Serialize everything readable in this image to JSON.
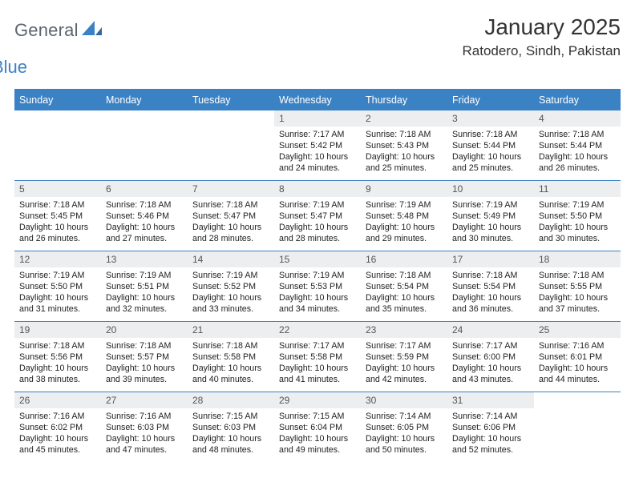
{
  "accent_color": "#3b82c4",
  "daynum_bg": "#eceef0",
  "logo": {
    "text1": "General",
    "text2": "Blue"
  },
  "title": "January 2025",
  "location": "Ratodero, Sindh, Pakistan",
  "weekdays": [
    "Sunday",
    "Monday",
    "Tuesday",
    "Wednesday",
    "Thursday",
    "Friday",
    "Saturday"
  ],
  "first_weekday_index": 3,
  "num_days": 31,
  "days": {
    "1": {
      "sunrise": "7:17 AM",
      "sunset": "5:42 PM",
      "daylight": "10 hours and 24 minutes."
    },
    "2": {
      "sunrise": "7:18 AM",
      "sunset": "5:43 PM",
      "daylight": "10 hours and 25 minutes."
    },
    "3": {
      "sunrise": "7:18 AM",
      "sunset": "5:44 PM",
      "daylight": "10 hours and 25 minutes."
    },
    "4": {
      "sunrise": "7:18 AM",
      "sunset": "5:44 PM",
      "daylight": "10 hours and 26 minutes."
    },
    "5": {
      "sunrise": "7:18 AM",
      "sunset": "5:45 PM",
      "daylight": "10 hours and 26 minutes."
    },
    "6": {
      "sunrise": "7:18 AM",
      "sunset": "5:46 PM",
      "daylight": "10 hours and 27 minutes."
    },
    "7": {
      "sunrise": "7:18 AM",
      "sunset": "5:47 PM",
      "daylight": "10 hours and 28 minutes."
    },
    "8": {
      "sunrise": "7:19 AM",
      "sunset": "5:47 PM",
      "daylight": "10 hours and 28 minutes."
    },
    "9": {
      "sunrise": "7:19 AM",
      "sunset": "5:48 PM",
      "daylight": "10 hours and 29 minutes."
    },
    "10": {
      "sunrise": "7:19 AM",
      "sunset": "5:49 PM",
      "daylight": "10 hours and 30 minutes."
    },
    "11": {
      "sunrise": "7:19 AM",
      "sunset": "5:50 PM",
      "daylight": "10 hours and 30 minutes."
    },
    "12": {
      "sunrise": "7:19 AM",
      "sunset": "5:50 PM",
      "daylight": "10 hours and 31 minutes."
    },
    "13": {
      "sunrise": "7:19 AM",
      "sunset": "5:51 PM",
      "daylight": "10 hours and 32 minutes."
    },
    "14": {
      "sunrise": "7:19 AM",
      "sunset": "5:52 PM",
      "daylight": "10 hours and 33 minutes."
    },
    "15": {
      "sunrise": "7:19 AM",
      "sunset": "5:53 PM",
      "daylight": "10 hours and 34 minutes."
    },
    "16": {
      "sunrise": "7:18 AM",
      "sunset": "5:54 PM",
      "daylight": "10 hours and 35 minutes."
    },
    "17": {
      "sunrise": "7:18 AM",
      "sunset": "5:54 PM",
      "daylight": "10 hours and 36 minutes."
    },
    "18": {
      "sunrise": "7:18 AM",
      "sunset": "5:55 PM",
      "daylight": "10 hours and 37 minutes."
    },
    "19": {
      "sunrise": "7:18 AM",
      "sunset": "5:56 PM",
      "daylight": "10 hours and 38 minutes."
    },
    "20": {
      "sunrise": "7:18 AM",
      "sunset": "5:57 PM",
      "daylight": "10 hours and 39 minutes."
    },
    "21": {
      "sunrise": "7:18 AM",
      "sunset": "5:58 PM",
      "daylight": "10 hours and 40 minutes."
    },
    "22": {
      "sunrise": "7:17 AM",
      "sunset": "5:58 PM",
      "daylight": "10 hours and 41 minutes."
    },
    "23": {
      "sunrise": "7:17 AM",
      "sunset": "5:59 PM",
      "daylight": "10 hours and 42 minutes."
    },
    "24": {
      "sunrise": "7:17 AM",
      "sunset": "6:00 PM",
      "daylight": "10 hours and 43 minutes."
    },
    "25": {
      "sunrise": "7:16 AM",
      "sunset": "6:01 PM",
      "daylight": "10 hours and 44 minutes."
    },
    "26": {
      "sunrise": "7:16 AM",
      "sunset": "6:02 PM",
      "daylight": "10 hours and 45 minutes."
    },
    "27": {
      "sunrise": "7:16 AM",
      "sunset": "6:03 PM",
      "daylight": "10 hours and 47 minutes."
    },
    "28": {
      "sunrise": "7:15 AM",
      "sunset": "6:03 PM",
      "daylight": "10 hours and 48 minutes."
    },
    "29": {
      "sunrise": "7:15 AM",
      "sunset": "6:04 PM",
      "daylight": "10 hours and 49 minutes."
    },
    "30": {
      "sunrise": "7:14 AM",
      "sunset": "6:05 PM",
      "daylight": "10 hours and 50 minutes."
    },
    "31": {
      "sunrise": "7:14 AM",
      "sunset": "6:06 PM",
      "daylight": "10 hours and 52 minutes."
    }
  },
  "labels": {
    "sunrise": "Sunrise:",
    "sunset": "Sunset:",
    "daylight": "Daylight:"
  }
}
